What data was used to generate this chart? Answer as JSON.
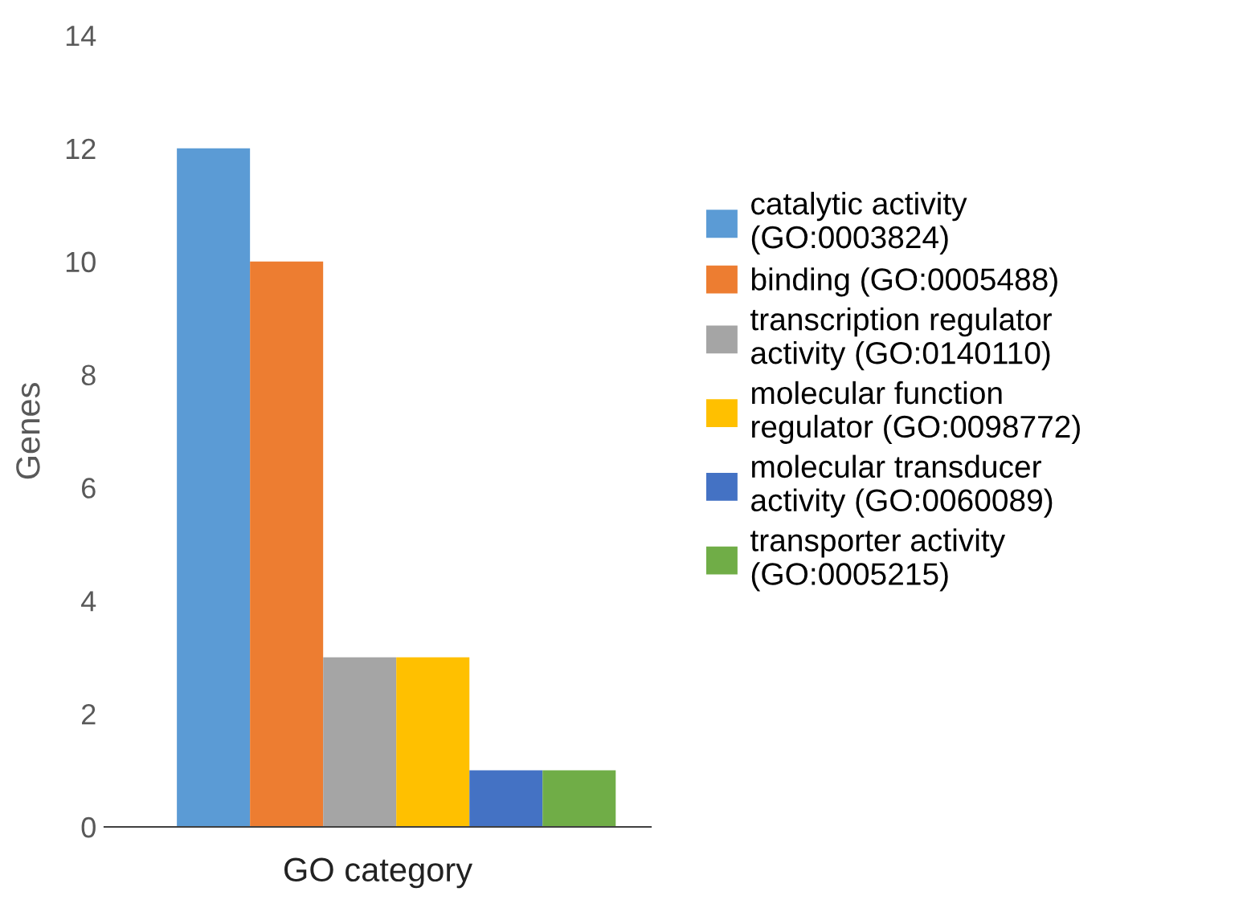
{
  "chart_data": {
    "type": "bar",
    "xlabel": "GO category",
    "ylabel": "Genes",
    "categories": [
      null
    ],
    "series": [
      {
        "name": "catalytic activity\n(GO:0003824)",
        "color": "#5b9bd5",
        "values": [
          12
        ]
      },
      {
        "name": "binding (GO:0005488)",
        "color": "#ed7d31",
        "values": [
          10
        ]
      },
      {
        "name": "transcription regulator\nactivity (GO:0140110)",
        "color": "#a5a5a5",
        "values": [
          3
        ]
      },
      {
        "name": "molecular function\nregulator (GO:0098772)",
        "color": "#ffc000",
        "values": [
          3
        ]
      },
      {
        "name": "molecular transducer\nactivity (GO:0060089)",
        "color": "#4472c4",
        "values": [
          1
        ]
      },
      {
        "name": "transporter activity\n(GO:0005215)",
        "color": "#70ad47",
        "values": [
          1
        ]
      }
    ],
    "ylim": [
      0,
      14
    ],
    "yticks": [
      0,
      2,
      4,
      6,
      8,
      10,
      12,
      14
    ],
    "grid": false,
    "legend": "right"
  }
}
